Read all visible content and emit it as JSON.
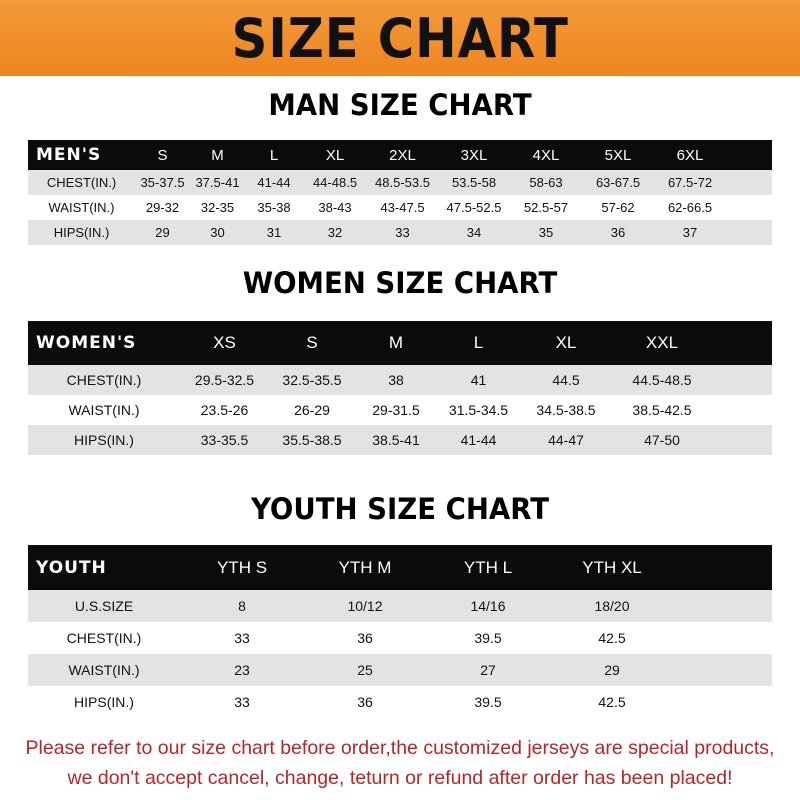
{
  "title": "SIZE CHART",
  "colors": {
    "banner": "#ee8520",
    "header_row": "#0b0b0b",
    "stripe": "#e3e3e3",
    "note": "#b4262a"
  },
  "men": {
    "title": "MAN SIZE CHART",
    "header": [
      "MEN'S",
      "S",
      "M",
      "L",
      "XL",
      "2XL",
      "3XL",
      "4XL",
      "5XL",
      "6XL"
    ],
    "rows": [
      [
        "CHEST(IN.)",
        "35-37.5",
        "37.5-41",
        "41-44",
        "44-48.5",
        "48.5-53.5",
        "53.5-58",
        "58-63",
        "63-67.5",
        "67.5-72"
      ],
      [
        "WAIST(IN.)",
        "29-32",
        "32-35",
        "35-38",
        "38-43",
        "43-47.5",
        "47.5-52.5",
        "52.5-57",
        "57-62",
        "62-66.5"
      ],
      [
        "HIPS(IN.)",
        "29",
        "30",
        "31",
        "32",
        "33",
        "34",
        "35",
        "36",
        "37"
      ]
    ]
  },
  "women": {
    "title": "WOMEN SIZE CHART",
    "header": [
      "WOMEN'S",
      "XS",
      "S",
      "M",
      "L",
      "XL",
      "XXL"
    ],
    "rows": [
      [
        "CHEST(IN.)",
        "29.5-32.5",
        "32.5-35.5",
        "38",
        "41",
        "44.5",
        "44.5-48.5"
      ],
      [
        "WAIST(IN.)",
        "23.5-26",
        "26-29",
        "29-31.5",
        "31.5-34.5",
        "34.5-38.5",
        "38.5-42.5"
      ],
      [
        "HIPS(IN.)",
        "33-35.5",
        "35.5-38.5",
        "38.5-41",
        "41-44",
        "44-47",
        "47-50"
      ]
    ]
  },
  "youth": {
    "title": "YOUTH SIZE CHART",
    "header": [
      "YOUTH",
      "YTH S",
      "YTH M",
      "YTH L",
      "YTH XL"
    ],
    "rows": [
      [
        "U.S.SIZE",
        "8",
        "10/12",
        "14/16",
        "18/20"
      ],
      [
        "CHEST(IN.)",
        "33",
        "36",
        "39.5",
        "42.5"
      ],
      [
        "WAIST(IN.)",
        "23",
        "25",
        "27",
        "29"
      ],
      [
        "HIPS(IN.)",
        "33",
        "36",
        "39.5",
        "42.5"
      ]
    ]
  },
  "note": [
    "Please refer to our size chart before order,the customized jerseys are special products,",
    "we don't accept cancel, change, teturn or refund after order has been placed!"
  ]
}
